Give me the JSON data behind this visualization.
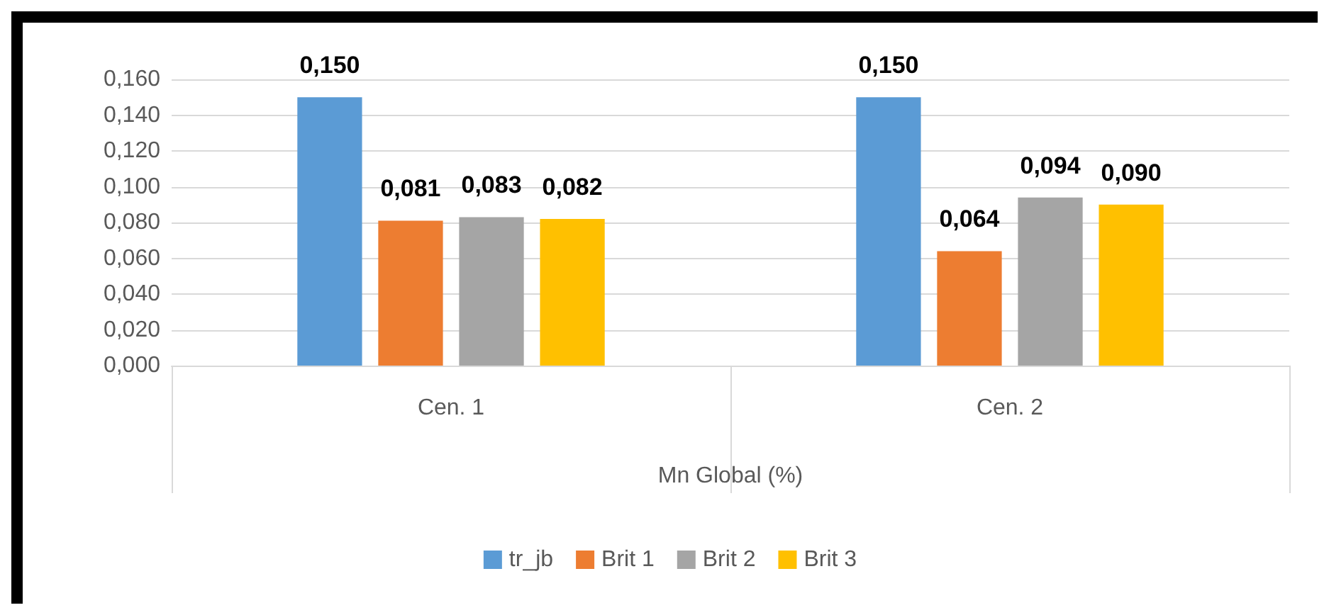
{
  "chart_data": {
    "type": "bar",
    "xlabel": "Mn Global (%)",
    "categories": [
      "Cen. 1",
      "Cen. 2"
    ],
    "series": [
      {
        "name": "tr_jb",
        "color": "#5b9bd5",
        "values": [
          0.15,
          0.15
        ],
        "value_labels": [
          "0,150",
          "0,150"
        ]
      },
      {
        "name": "Brit 1",
        "color": "#ed7d31",
        "values": [
          0.081,
          0.064
        ],
        "value_labels": [
          "0,081",
          "0,064"
        ]
      },
      {
        "name": "Brit 2",
        "color": "#a5a5a5",
        "values": [
          0.083,
          0.094
        ],
        "value_labels": [
          "0,083",
          "0,094"
        ]
      },
      {
        "name": "Brit 3",
        "color": "#ffc000",
        "values": [
          0.082,
          0.09
        ],
        "value_labels": [
          "0,082",
          "0,090"
        ]
      }
    ],
    "ylim": [
      0,
      0.16
    ],
    "yticks": [
      {
        "value": 0,
        "label": "0,000"
      },
      {
        "value": 0.02,
        "label": "0,020"
      },
      {
        "value": 0.04,
        "label": "0,040"
      },
      {
        "value": 0.06,
        "label": "0,060"
      },
      {
        "value": 0.08,
        "label": "0,080"
      },
      {
        "value": 0.1,
        "label": "0,100"
      },
      {
        "value": 0.12,
        "label": "0,120"
      },
      {
        "value": 0.14,
        "label": "0,140"
      },
      {
        "value": 0.16,
        "label": "0,160"
      }
    ],
    "grid": "y",
    "legend": "bottom"
  }
}
